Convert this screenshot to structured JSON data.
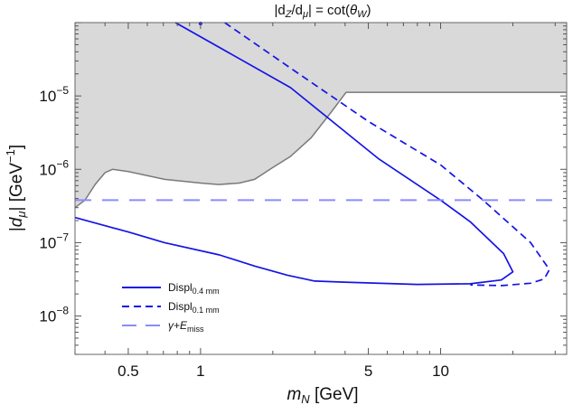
{
  "chart_data": {
    "type": "line",
    "title": {
      "pre": "|d",
      "sub1": "Z",
      "mid": "/d",
      "sub2": "μ",
      "eq": "| = cot(",
      "theta": "θ",
      "sub3": "W",
      "post": ")"
    },
    "xlabel": {
      "var": "m",
      "sub": "N",
      "unit": " [GeV]"
    },
    "ylabel": {
      "pre": "|",
      "var": "d",
      "sub": "μ",
      "mid": "| [GeV",
      "sup": "−1",
      "post": "]"
    },
    "xscale": "log",
    "yscale": "log",
    "xlim": [
      0.3,
      33.5
    ],
    "ylim": [
      3e-09,
      0.0001
    ],
    "grid": false,
    "legend_position": "bottom-left",
    "x_ticks": [
      {
        "value": 0.5,
        "label": "0.5"
      },
      {
        "value": 1,
        "label": "1"
      },
      {
        "value": 5,
        "label": "5"
      },
      {
        "value": 10,
        "label": "10"
      }
    ],
    "x_minor_ticks": [
      0.3,
      0.4,
      0.6,
      0.7,
      0.8,
      0.9,
      2,
      3,
      4,
      6,
      7,
      8,
      9,
      20,
      30
    ],
    "y_ticks": [
      {
        "value": 1e-05,
        "base": "10",
        "exp": "−5"
      },
      {
        "value": 1e-06,
        "base": "10",
        "exp": "−6"
      },
      {
        "value": 1e-07,
        "base": "10",
        "exp": "−7"
      },
      {
        "value": 1e-08,
        "base": "10",
        "exp": "−8"
      }
    ],
    "excluded_region": {
      "fill": "#d9d9d9",
      "edge": "#7a7a7a",
      "boundary": [
        [
          0.3,
          3e-07
        ],
        [
          0.33,
          3.8e-07
        ],
        [
          0.365,
          6.3e-07
        ],
        [
          0.4,
          9e-07
        ],
        [
          0.43,
          1e-06
        ],
        [
          0.5,
          9.3e-07
        ],
        [
          0.708,
          7.3e-07
        ],
        [
          1.0,
          6.5e-07
        ],
        [
          1.19,
          6.2e-07
        ],
        [
          1.45,
          6.5e-07
        ],
        [
          1.68,
          7.3e-07
        ],
        [
          1.99,
          1.05e-06
        ],
        [
          2.37,
          1.5e-06
        ],
        [
          2.89,
          2.7e-06
        ],
        [
          3.5,
          6e-06
        ],
        [
          4.04,
          1.12e-05
        ],
        [
          33.5,
          1.12e-05
        ]
      ]
    },
    "series": [
      {
        "name": "Displ",
        "name_sub": "0.4 mm",
        "style": "solid",
        "color": "#1414e6",
        "points": [
          [
            0.786,
            0.0001
          ],
          [
            2.37,
            1.3e-05
          ],
          [
            5.5,
            1.4e-06
          ],
          [
            10,
            3.8e-07
          ],
          [
            13.3,
            1.92e-07
          ],
          [
            18.3,
            7.1e-08
          ],
          [
            20.0,
            4e-08
          ],
          [
            17.9,
            3.1e-08
          ],
          [
            13.3,
            2.75e-08
          ],
          [
            8,
            2.7e-08
          ],
          [
            3.97,
            2.9e-08
          ],
          [
            2.99,
            3e-08
          ],
          [
            2.3,
            3.6e-08
          ],
          [
            1.68,
            4.8e-08
          ],
          [
            1.2,
            6.8e-08
          ],
          [
            0.708,
            1e-07
          ],
          [
            0.5,
            1.4e-07
          ],
          [
            0.3,
            2.2e-07
          ]
        ]
      },
      {
        "name": "Displ",
        "name_sub": "0.1 mm",
        "style": "dashed",
        "color": "#1414e6",
        "points": [
          [
            1.26,
            0.0001
          ],
          [
            2.37,
            2.4e-05
          ],
          [
            5,
            4.5e-06
          ],
          [
            10,
            1.15e-06
          ],
          [
            14.9,
            3.9e-07
          ],
          [
            23.7,
            1e-07
          ],
          [
            28.4,
            4.3e-08
          ],
          [
            27.0,
            3.2e-08
          ],
          [
            23.7,
            2.8e-08
          ],
          [
            18,
            2.6e-08
          ],
          [
            13.3,
            2.65e-08
          ]
        ]
      },
      {
        "name": "γ+E",
        "name_sub": "miss",
        "style": "long-dashed",
        "color": "#8a8aff",
        "points": [
          [
            0.3,
            3.8e-07
          ],
          [
            31,
            3.8e-07
          ]
        ]
      }
    ],
    "markers": [
      {
        "x": 1,
        "y": 0.0001,
        "color": "#1414e6"
      }
    ]
  }
}
